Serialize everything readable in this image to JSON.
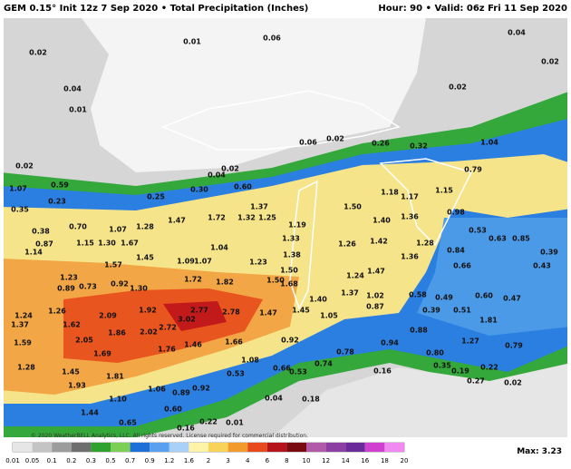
{
  "header": {
    "title": "GEM 0.15° Init 12z 7 Sep 2020 • Total Precipitation (Inches)",
    "valid": "Hour: 90 • Valid: 06z Fri 11 Sep 2020"
  },
  "map": {
    "labels": [
      "0.01",
      "0.06",
      "0.04",
      "0.02",
      "0.04",
      "0.01",
      "0.02",
      "0.02",
      "0.02",
      "0.06",
      "0.02",
      "0.26",
      "0.32",
      "1.04",
      "0.02",
      "0.04",
      "0.79",
      "1.07",
      "0.59",
      "0.25",
      "0.30",
      "0.60",
      "1.18",
      "1.17",
      "1.15",
      "0.23",
      "0.35",
      "1.37",
      "1.50",
      "0.98",
      "0.70",
      "1.07",
      "1.28",
      "1.47",
      "1.72",
      "1.32",
      "1.25",
      "1.19",
      "1.40",
      "1.36",
      "0.38",
      "0.53",
      "0.85",
      "0.87",
      "1.15",
      "1.30",
      "1.67",
      "1.33",
      "1.26",
      "1.42",
      "1.28",
      "1.04",
      "0.63",
      "0.84",
      "0.39",
      "1.45",
      "1.14",
      "1.38",
      "1.36",
      "1.57",
      "1.09",
      "1.07",
      "1.23",
      "1.50",
      "0.66",
      "0.43",
      "1.47",
      "1.23",
      "1.72",
      "1.82",
      "1.50",
      "1.68",
      "1.24",
      "0.89",
      "0.73",
      "0.92",
      "1.30",
      "1.37",
      "1.02",
      "0.58",
      "0.49",
      "0.60",
      "0.47",
      "1.40",
      "0.87",
      "0.39",
      "0.51",
      "1.24",
      "1.26",
      "2.09",
      "1.92",
      "3.02",
      "2.77",
      "2.78",
      "1.47",
      "1.45",
      "1.05",
      "1.37",
      "1.62",
      "1.86",
      "2.02",
      "2.72",
      "1.81",
      "1.59",
      "2.05",
      "1.76",
      "1.46",
      "1.66",
      "0.92",
      "0.88",
      "1.27",
      "0.94",
      "0.79",
      "1.69",
      "0.78",
      "0.80",
      "1.08",
      "0.74",
      "1.28",
      "1.45",
      "1.81",
      "0.53",
      "0.66",
      "0.53",
      "0.16",
      "0.35",
      "0.19",
      "0.22",
      "0.27",
      "0.02",
      "1.93",
      "0.92",
      "0.89",
      "1.06",
      "1.10",
      "0.04",
      "0.18",
      "1.44",
      "0.60",
      "0.22",
      "0.01",
      "0.65",
      "0.16"
    ]
  },
  "colorbar": {
    "labels": [
      "0.01",
      "0.05",
      "0.1",
      "0.2",
      "0.3",
      "0.5",
      "0.7",
      "0.9",
      "1.2",
      "1.6",
      "2",
      "3",
      "4",
      "6",
      "8",
      "10",
      "12",
      "14",
      "16",
      "18",
      "20"
    ],
    "colors": [
      "#e6e6e6",
      "#c4c4c4",
      "#9c9c9c",
      "#6e6e6e",
      "#2fa12f",
      "#7ccf55",
      "#1f6fd8",
      "#5aa0f0",
      "#a8d0f8",
      "#fff3a8",
      "#f7d35a",
      "#f39a2c",
      "#e8491c",
      "#b5121b",
      "#7a0a12",
      "#b05aa8",
      "#8c3fa0",
      "#6a2a9a",
      "#d040d0",
      "#f08af0"
    ]
  },
  "footer": {
    "copyright": "© 2020 WeatherBELL Analytics, LLC. All rights reserved. License required for commercial distribution.",
    "max": "Max: 3.23"
  }
}
